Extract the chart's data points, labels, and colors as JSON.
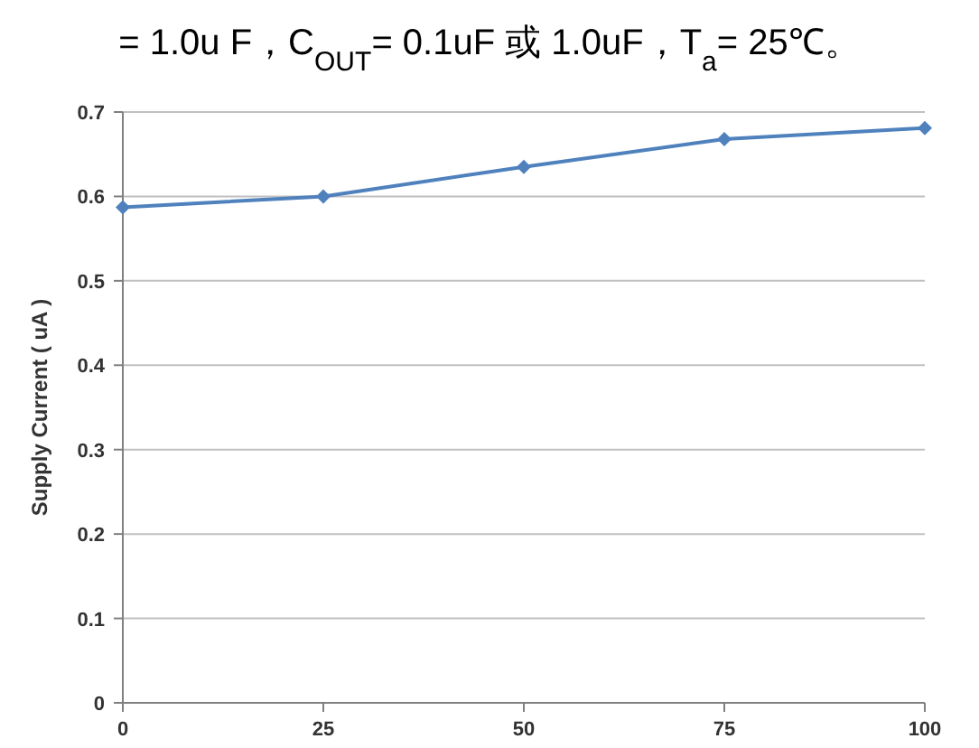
{
  "chart_data": {
    "type": "line",
    "ylabel": "Supply Current ( uA )",
    "annotations": [
      "= 1.0u F，C$_{OUT}$= 0.1uF 或 1.0uF，T$_{a}$= 25℃。"
    ],
    "x": [
      0,
      25,
      50,
      75,
      100
    ],
    "series": [
      {
        "color": "#4f81bd",
        "values": [
          0.587,
          0.6,
          0.635,
          0.668,
          0.681
        ]
      }
    ],
    "xlim": [
      0,
      100
    ],
    "xticks": [
      0,
      25,
      50,
      75,
      100
    ],
    "ylim": [
      0,
      0.7
    ],
    "yticks": [
      0,
      0.1,
      0.2,
      0.3,
      0.4,
      0.5,
      0.6,
      0.7
    ],
    "grid": "y",
    "marker": "diamond",
    "line_style": "solid"
  }
}
